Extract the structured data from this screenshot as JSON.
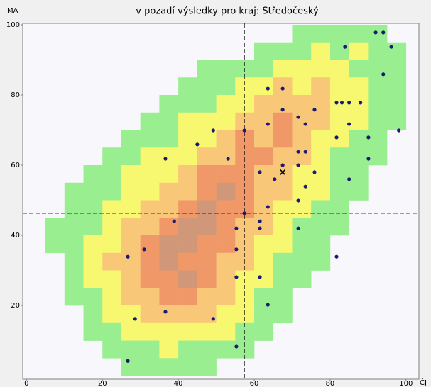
{
  "chart_data": {
    "type": "scatter",
    "title": "v pozadí výsledky pro kraj: Středočeský",
    "y_label": "MA",
    "x_label": "ČJ",
    "xlim": [
      -1,
      103.4
    ],
    "ylim": [
      -1,
      100.4
    ],
    "xticks": [
      0,
      20,
      40,
      60,
      80,
      100
    ],
    "yticks": [
      20,
      40,
      60,
      80,
      100
    ],
    "background": "#f8f8fc",
    "point_color": "#1a1a70",
    "heat_colors": [
      "#99ee90",
      "#f8f870",
      "#f8c878",
      "#f09868",
      "#d09878"
    ],
    "heatmap": [
      [
        0,
        0,
        0,
        0,
        0,
        0,
        0,
        0,
        0,
        0,
        0,
        0,
        0,
        0,
        1,
        1,
        1,
        1,
        1,
        0
      ],
      [
        0,
        0,
        0,
        0,
        0,
        0,
        0,
        0,
        0,
        0,
        0,
        0,
        1,
        1,
        1,
        2,
        1,
        2,
        1,
        1
      ],
      [
        0,
        0,
        0,
        0,
        0,
        0,
        0,
        0,
        0,
        1,
        1,
        1,
        1,
        2,
        2,
        2,
        2,
        1,
        1,
        1
      ],
      [
        0,
        0,
        0,
        0,
        0,
        0,
        0,
        0,
        1,
        1,
        1,
        2,
        2,
        3,
        2,
        3,
        2,
        2,
        1,
        1
      ],
      [
        0,
        0,
        0,
        0,
        0,
        0,
        0,
        1,
        1,
        1,
        2,
        2,
        3,
        3,
        3,
        3,
        2,
        2,
        1,
        1
      ],
      [
        0,
        0,
        0,
        0,
        0,
        0,
        1,
        1,
        2,
        2,
        2,
        3,
        3,
        4,
        3,
        3,
        2,
        2,
        1,
        1
      ],
      [
        0,
        0,
        0,
        0,
        0,
        1,
        1,
        1,
        2,
        2,
        3,
        4,
        3,
        4,
        3,
        2,
        2,
        1,
        1,
        0
      ],
      [
        0,
        0,
        0,
        0,
        1,
        1,
        2,
        2,
        2,
        3,
        3,
        4,
        4,
        3,
        3,
        2,
        1,
        1,
        1,
        0
      ],
      [
        0,
        0,
        0,
        1,
        1,
        2,
        2,
        2,
        3,
        4,
        4,
        4,
        3,
        3,
        2,
        2,
        1,
        1,
        0,
        0
      ],
      [
        0,
        0,
        1,
        1,
        1,
        2,
        2,
        3,
        3,
        4,
        5,
        4,
        3,
        3,
        2,
        2,
        1,
        1,
        0,
        0
      ],
      [
        0,
        0,
        1,
        1,
        2,
        2,
        3,
        3,
        4,
        5,
        4,
        4,
        3,
        2,
        2,
        1,
        1,
        0,
        0,
        0
      ],
      [
        0,
        1,
        1,
        1,
        2,
        3,
        3,
        4,
        5,
        5,
        4,
        3,
        3,
        2,
        1,
        1,
        1,
        0,
        0,
        0
      ],
      [
        0,
        1,
        1,
        2,
        2,
        3,
        4,
        5,
        5,
        4,
        4,
        3,
        2,
        2,
        1,
        1,
        0,
        0,
        0,
        0
      ],
      [
        0,
        0,
        1,
        2,
        3,
        3,
        4,
        5,
        4,
        4,
        3,
        3,
        2,
        1,
        1,
        1,
        0,
        0,
        0,
        0
      ],
      [
        0,
        0,
        1,
        2,
        2,
        3,
        4,
        4,
        5,
        4,
        3,
        2,
        2,
        1,
        1,
        0,
        0,
        0,
        0,
        0
      ],
      [
        0,
        0,
        1,
        1,
        2,
        3,
        3,
        4,
        4,
        3,
        3,
        2,
        1,
        1,
        0,
        0,
        0,
        0,
        0,
        0
      ],
      [
        0,
        0,
        0,
        1,
        2,
        2,
        3,
        3,
        3,
        3,
        2,
        2,
        1,
        1,
        0,
        0,
        0,
        0,
        0,
        0
      ],
      [
        0,
        0,
        0,
        1,
        1,
        2,
        2,
        2,
        2,
        2,
        2,
        1,
        1,
        0,
        0,
        0,
        0,
        0,
        0,
        0
      ],
      [
        0,
        0,
        0,
        0,
        1,
        1,
        1,
        2,
        1,
        1,
        1,
        1,
        0,
        0,
        0,
        0,
        0,
        0,
        0,
        0
      ],
      [
        0,
        0,
        0,
        0,
        0,
        1,
        1,
        1,
        1,
        1,
        0,
        0,
        0,
        0,
        0,
        0,
        0,
        0,
        0,
        0
      ]
    ],
    "x": [
      92.0,
      94.0,
      83.9,
      96.1,
      94.0,
      63.6,
      67.5,
      67.5,
      81.7,
      83.1,
      85.0,
      88.0,
      75.9,
      71.6,
      63.6,
      73.5,
      85.0,
      49.2,
      57.4,
      98.1,
      81.7,
      90.1,
      45.0,
      36.6,
      53.1,
      71.6,
      73.5,
      90.1,
      67.5,
      61.5,
      71.6,
      75.9,
      65.4,
      85.0,
      73.5,
      71.6,
      63.6,
      57.4,
      38.9,
      61.5,
      55.3,
      61.5,
      71.6,
      31.0,
      55.3,
      26.7,
      81.7,
      55.3,
      61.5,
      63.6,
      36.6,
      28.6,
      49.2,
      55.3,
      26.7
    ],
    "values": [
      97.8,
      97.8,
      93.7,
      93.7,
      85.9,
      81.8,
      81.8,
      75.8,
      77.8,
      77.8,
      77.8,
      77.8,
      75.8,
      73.7,
      71.7,
      71.7,
      71.7,
      69.9,
      69.9,
      69.9,
      67.9,
      67.9,
      65.9,
      61.8,
      61.8,
      63.8,
      63.8,
      61.8,
      60.0,
      58.0,
      60.0,
      58.0,
      56.0,
      56.0,
      53.9,
      49.9,
      48.1,
      46.3,
      44.0,
      44.0,
      42.0,
      42.0,
      42.0,
      36.0,
      36.0,
      33.9,
      33.9,
      28.1,
      28.1,
      20.2,
      18.2,
      16.2,
      16.2,
      8.3,
      4.2
    ],
    "vline": 57.4,
    "hline": 46.3,
    "marker": {
      "x": 67.5,
      "y": 58.0
    }
  }
}
